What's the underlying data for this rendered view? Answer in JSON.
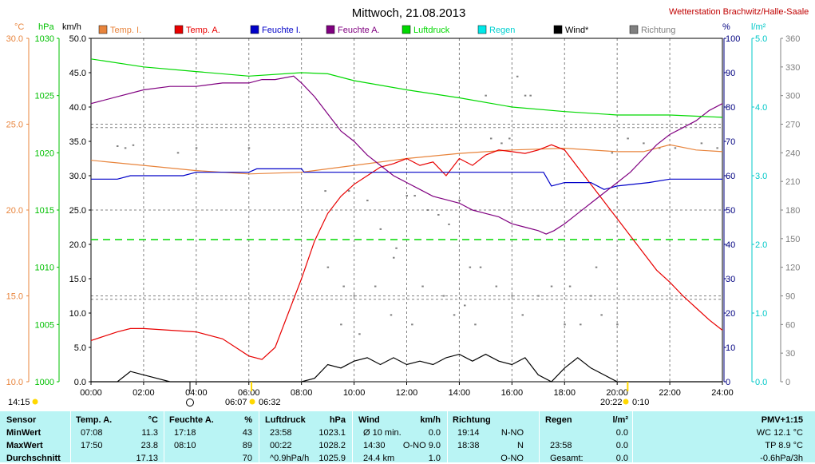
{
  "title": "Mittwoch, 21.08.2013",
  "station": "Wetterstation Brachwitz/Halle-Saale",
  "colors": {
    "temp_i": "#e8843c",
    "temp_a": "#e80000",
    "feuchte_i": "#0000c8",
    "feuchte_a": "#800080",
    "luftdruck": "#00d800",
    "regen": "#00e8e8",
    "wind": "#000000",
    "richtung": "#808080",
    "bg": "#ffffff",
    "table_bg": "#b9f4f4"
  },
  "unit_labels": {
    "temp": "°C",
    "pressure": "hPa",
    "wind": "km/h",
    "humidity": "%",
    "rain": "l/m²"
  },
  "legend": [
    "Temp. I.",
    "Temp. A.",
    "Feuchte I.",
    "Feuchte A.",
    "Luftdruck",
    "Regen",
    "Wind*",
    "Richtung"
  ],
  "astro": {
    "moonrise": "14:15",
    "sunrise": "06:07",
    "sun_noon": "06:32",
    "sunset": "20:22",
    "moon_extra": "0:10"
  },
  "chart_data": {
    "type": "line",
    "title": "Mittwoch, 21.08.2013",
    "xlabel": "",
    "x_ticks": [
      "00:00",
      "02:00",
      "04:00",
      "06:00",
      "08:00",
      "10:00",
      "12:00",
      "14:00",
      "16:00",
      "18:00",
      "20:00",
      "22:00",
      "24:00"
    ],
    "xlim": [
      0,
      24
    ],
    "axes": {
      "temp": {
        "range": [
          10.0,
          30.0
        ],
        "ticks": [
          "10.0",
          "15.0",
          "20.0",
          "25.0",
          "30.0"
        ]
      },
      "pressure": {
        "range": [
          1000,
          1030
        ],
        "ticks": [
          "1000",
          "1005",
          "1010",
          "1015",
          "1020",
          "1025",
          "1030"
        ]
      },
      "wind": {
        "range": [
          0,
          50
        ],
        "ticks": [
          "0.0",
          "5.0",
          "10.0",
          "15.0",
          "20.0",
          "25.0",
          "30.0",
          "35.0",
          "40.0",
          "45.0",
          "50.0"
        ]
      },
      "humidity": {
        "range": [
          0,
          100
        ],
        "ticks": [
          "0",
          "10",
          "20",
          "30",
          "40",
          "50",
          "60",
          "70",
          "80",
          "90",
          "100"
        ]
      },
      "rain": {
        "range": [
          0,
          5
        ],
        "ticks": [
          "0.0",
          "1.0",
          "2.0",
          "3.0",
          "4.0",
          "5.0"
        ]
      },
      "direction": {
        "range": [
          0,
          360
        ],
        "ticks": [
          "0",
          "30",
          "60",
          "90",
          "120",
          "150",
          "180",
          "210",
          "240",
          "270",
          "300",
          "330",
          "360"
        ]
      }
    },
    "grid": true,
    "legend_position": "top",
    "series": [
      {
        "name": "Temp. I.",
        "axis": "temp",
        "x": [
          0,
          2,
          4,
          6,
          8,
          10,
          12,
          14,
          16,
          18,
          20,
          21,
          22,
          23,
          24
        ],
        "values": [
          22.9,
          22.6,
          22.3,
          22.1,
          22.2,
          22.6,
          23.0,
          23.3,
          23.5,
          23.6,
          23.4,
          23.4,
          23.8,
          23.5,
          23.4
        ]
      },
      {
        "name": "Temp. A.",
        "axis": "temp",
        "x": [
          0,
          1,
          1.5,
          2,
          3,
          4,
          5,
          5.5,
          6,
          6.5,
          7,
          7.5,
          8,
          8.5,
          9,
          9.5,
          10,
          10.5,
          11,
          11.5,
          12,
          12.5,
          13,
          13.5,
          14,
          14.5,
          15,
          15.5,
          16,
          16.5,
          17,
          17.5,
          18,
          18.5,
          19,
          19.5,
          20,
          20.5,
          21,
          21.5,
          22,
          22.5,
          23,
          23.5,
          24
        ],
        "values": [
          12.4,
          12.9,
          13.1,
          13.1,
          13.0,
          12.9,
          12.5,
          12.0,
          11.5,
          11.3,
          12.0,
          14.0,
          16.0,
          18.2,
          19.8,
          20.8,
          21.5,
          22.0,
          22.5,
          22.7,
          23.0,
          22.6,
          22.8,
          22.0,
          23.0,
          22.6,
          23.2,
          23.5,
          23.4,
          23.3,
          23.5,
          23.8,
          23.5,
          22.5,
          21.5,
          20.5,
          19.5,
          18.5,
          17.5,
          16.5,
          15.8,
          15.0,
          14.3,
          13.6,
          13.0
        ]
      },
      {
        "name": "Feuchte I.",
        "axis": "humidity",
        "x": [
          0,
          1,
          1.5,
          3.5,
          4,
          6,
          6.3,
          8,
          8.1,
          10,
          11,
          12,
          16,
          17.2,
          17.5,
          18,
          19,
          19.5,
          20,
          21.2,
          22,
          23,
          24
        ],
        "values": [
          59,
          59,
          60,
          60,
          61,
          61,
          62,
          62,
          61,
          61,
          61,
          61,
          61,
          61,
          57,
          58,
          58,
          56,
          57,
          58,
          59,
          59,
          59
        ]
      },
      {
        "name": "Feuchte A.",
        "axis": "humidity",
        "x": [
          0,
          1,
          2,
          3,
          4,
          5,
          6,
          6.5,
          7,
          7.7,
          8,
          8.5,
          9,
          9.5,
          10,
          10.5,
          11,
          11.5,
          12,
          12.5,
          13,
          13.5,
          14,
          14.5,
          15,
          15.5,
          16,
          16.5,
          17,
          17.3,
          17.6,
          18,
          18.5,
          19,
          19.5,
          20,
          20.5,
          21,
          21.5,
          22,
          22.5,
          23,
          23.5,
          24
        ],
        "values": [
          81,
          83,
          85,
          86,
          86,
          87,
          87,
          88,
          88,
          89,
          87,
          83,
          78,
          73,
          70,
          66,
          63,
          60,
          58,
          56,
          54,
          53,
          52,
          50,
          49,
          48,
          46,
          45,
          44,
          43,
          44,
          46,
          49,
          52,
          55,
          58,
          61,
          65,
          69,
          72,
          74,
          76,
          79,
          81
        ]
      },
      {
        "name": "Luftdruck",
        "axis": "pressure",
        "x": [
          0,
          2,
          4,
          6,
          8,
          9,
          10,
          12,
          14,
          16,
          18,
          20,
          22,
          24
        ],
        "values": [
          1028.2,
          1027.5,
          1027.1,
          1026.7,
          1027.0,
          1026.9,
          1026.3,
          1025.5,
          1024.8,
          1024.0,
          1023.6,
          1023.3,
          1023.3,
          1023.1
        ]
      },
      {
        "name": "Wind*",
        "axis": "wind",
        "x": [
          0,
          1,
          1.5,
          2,
          2.5,
          3,
          4,
          5,
          6,
          7,
          8,
          8.5,
          9,
          9.5,
          10,
          10.5,
          11,
          11.5,
          12,
          12.5,
          13,
          13.5,
          14,
          14.5,
          15,
          15.5,
          16,
          16.5,
          17,
          17.5,
          18,
          18.5,
          19,
          19.5,
          20,
          21,
          22,
          23,
          24
        ],
        "values": [
          0,
          0,
          1.5,
          1.0,
          0.5,
          0,
          0,
          0,
          0,
          0,
          0,
          0.5,
          2.5,
          2.0,
          3.0,
          3.5,
          2.5,
          3.5,
          2.5,
          3.0,
          2.5,
          3.5,
          4.0,
          3.0,
          4.0,
          3.0,
          2.5,
          3.5,
          1.0,
          0,
          2.0,
          3.5,
          2.0,
          1.0,
          0,
          0,
          0,
          0,
          0
        ]
      }
    ],
    "reference_lines": [
      {
        "name": "Regen",
        "axis": "rain",
        "value": 2.07
      }
    ],
    "richtung_points": [
      [
        1.0,
        247
      ],
      [
        1.3,
        245
      ],
      [
        1.6,
        248
      ],
      [
        3.3,
        240
      ],
      [
        4.0,
        245
      ],
      [
        6.0,
        245
      ],
      [
        8.9,
        200
      ],
      [
        9.8,
        200
      ],
      [
        10.5,
        190
      ],
      [
        11.0,
        160
      ],
      [
        11.5,
        130
      ],
      [
        11.6,
        140
      ],
      [
        12.0,
        195
      ],
      [
        12.3,
        195
      ],
      [
        12.8,
        180
      ],
      [
        13.2,
        175
      ],
      [
        13.6,
        165
      ],
      [
        14.0,
        190
      ],
      [
        14.4,
        120
      ],
      [
        14.8,
        120
      ],
      [
        15.0,
        300
      ],
      [
        15.2,
        255
      ],
      [
        15.6,
        250
      ],
      [
        15.9,
        255
      ],
      [
        16.2,
        320
      ],
      [
        16.5,
        300
      ],
      [
        16.7,
        300
      ],
      [
        17.5,
        100
      ],
      [
        18.2,
        100
      ],
      [
        19.2,
        120
      ],
      [
        19.8,
        240
      ],
      [
        20.4,
        255
      ],
      [
        21.0,
        250
      ],
      [
        21.6,
        245
      ],
      [
        22.2,
        245
      ],
      [
        23.2,
        250
      ],
      [
        23.8,
        245
      ],
      [
        9.0,
        120
      ],
      [
        9.6,
        100
      ],
      [
        10.0,
        90
      ],
      [
        10.8,
        100
      ],
      [
        12.6,
        100
      ],
      [
        13.4,
        90
      ],
      [
        14.2,
        80
      ],
      [
        15.4,
        100
      ],
      [
        16.0,
        90
      ],
      [
        17.0,
        90
      ],
      [
        18.6,
        60
      ],
      [
        19.0,
        90
      ],
      [
        20.0,
        60
      ],
      [
        9.5,
        60
      ],
      [
        10.2,
        50
      ],
      [
        11.4,
        70
      ],
      [
        12.2,
        60
      ],
      [
        13.8,
        70
      ],
      [
        14.6,
        60
      ],
      [
        16.4,
        70
      ],
      [
        18.0,
        60
      ],
      [
        19.4,
        70
      ]
    ]
  },
  "table": {
    "row_labels": [
      "Sensor",
      "MinWert",
      "MaxWert",
      "Durchschnitt"
    ],
    "groups": [
      {
        "header": "Temp. A.",
        "unit": "°C",
        "rows": [
          [
            "07:08",
            "11.3"
          ],
          [
            "17:50",
            "23.8"
          ],
          [
            "",
            "17.13"
          ]
        ]
      },
      {
        "header": "Feuchte A.",
        "unit": "%",
        "rows": [
          [
            "17:18",
            "43"
          ],
          [
            "08:10",
            "89"
          ],
          [
            "",
            "70"
          ]
        ]
      },
      {
        "header": "Luftdruck",
        "unit": "hPa",
        "rows": [
          [
            "23:58",
            "1023.1"
          ],
          [
            "00:22",
            "1028.2"
          ],
          [
            "^0.9hPa/h",
            "1025.9"
          ]
        ]
      },
      {
        "header": "Wind",
        "unit": "km/h",
        "rows": [
          [
            "Ø 10 min.",
            "0.0"
          ],
          [
            "14:30",
            "O-NO 9.0"
          ],
          [
            "24.4 km",
            "1.0"
          ]
        ]
      },
      {
        "header": "Richtung",
        "unit": "",
        "rows": [
          [
            "19:14",
            "N-NO"
          ],
          [
            "18:38",
            "N"
          ],
          [
            "",
            "O-NO"
          ]
        ]
      },
      {
        "header": "Regen",
        "unit": "l/m²",
        "rows": [
          [
            "",
            "0.0"
          ],
          [
            "23:58",
            "0.0"
          ],
          [
            "Gesamt:",
            "0.0"
          ]
        ]
      }
    ],
    "pmv": {
      "header": "PMV+1:15",
      "rows": [
        "WC 12.1 °C",
        "TP 8.9 °C",
        "-0.6hPa/3h"
      ]
    }
  }
}
